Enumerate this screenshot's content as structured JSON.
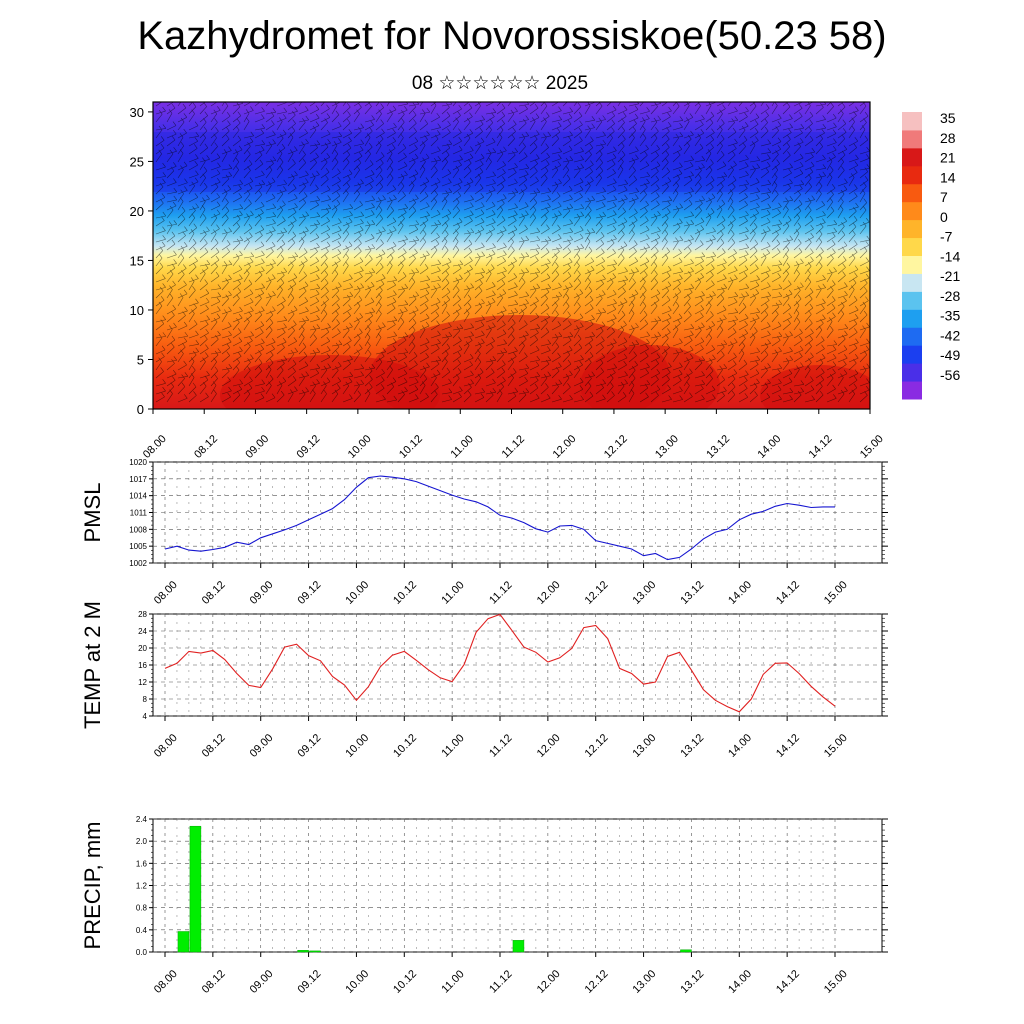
{
  "title": "Kazhydromet for Novorossiskoe(50.23 58)",
  "subtitle": "08 ☆☆☆☆☆☆ 2025",
  "colors": {
    "pmsl_line": "#1515d0",
    "temp_line": "#e02020",
    "precip_bar": "#00ee00",
    "frame": "#000000"
  },
  "chart_data": [
    {
      "type": "heatmap",
      "name_in_figure": "cross-section",
      "x_ticks": [
        "08.00",
        "08.12",
        "09.00",
        "09.12",
        "10.00",
        "10.12",
        "11.00",
        "11.12",
        "12.00",
        "12.12",
        "13.00",
        "13.12",
        "14.00",
        "14.12",
        "15.00"
      ],
      "y_ticks": [
        "0",
        "5",
        "10",
        "15",
        "20",
        "25",
        "30"
      ],
      "ylim": [
        0,
        31
      ],
      "colorbar_labels": [
        "35",
        "28",
        "21",
        "14",
        "7",
        "0",
        "-7",
        "-14",
        "-21",
        "-28",
        "-35",
        "-42",
        "-49",
        "-56"
      ],
      "colorbar_range": [
        -60,
        38
      ],
      "colorscale": [
        "#8a2be2",
        "#4a2fe8",
        "#1b3ff0",
        "#1e6bf2",
        "#1e9ff0",
        "#5bc3ef",
        "#c8e6f2",
        "#fff6a0",
        "#ffd84a",
        "#ffb42a",
        "#ff8a1a",
        "#f85a10",
        "#e82a10",
        "#d81818",
        "#f07a7a",
        "#f6c0c0"
      ],
      "overlay": "wind barbs"
    },
    {
      "type": "line",
      "ylabel": "PMSL",
      "x_ticks": [
        "08.00",
        "08.12",
        "09.00",
        "09.12",
        "10.00",
        "10.12",
        "11.00",
        "11.12",
        "12.00",
        "12.12",
        "13.00",
        "13.12",
        "14.00",
        "14.12",
        "15.00"
      ],
      "y_ticks": [
        "1002",
        "1005",
        "1008",
        "1011",
        "1014",
        "1017",
        "1020"
      ],
      "ylim": [
        1002,
        1020
      ],
      "grid": true,
      "series": [
        {
          "values": [
            1004.5,
            1005,
            1004.3,
            1004.1,
            1004.4,
            1004.8,
            1005.7,
            1005.3,
            1006.5,
            1007.2,
            1007.9,
            1008.7,
            1009.7,
            1010.7,
            1011.7,
            1013.3,
            1015.5,
            1017.2,
            1017.5,
            1017.3,
            1017.0,
            1016.5,
            1015.7,
            1014.9,
            1014.1,
            1013.4,
            1012.9,
            1012.0,
            1010.5,
            1010.0,
            1009.2,
            1008.1,
            1007.5,
            1008.6,
            1008.7,
            1008.0,
            1006.0,
            1005.5,
            1005.0,
            1004.5,
            1003.3,
            1003.7,
            1002.6,
            1003.0,
            1004.5,
            1006.3,
            1007.5,
            1008.0,
            1009.7,
            1010.7,
            1011.2,
            1012.1,
            1012.6,
            1012.3,
            1011.9,
            1012.0,
            1012.0
          ]
        }
      ]
    },
    {
      "type": "line",
      "ylabel": "TEMP at 2 M",
      "x_ticks": [
        "08.00",
        "08.12",
        "09.00",
        "09.12",
        "10.00",
        "10.12",
        "11.00",
        "11.12",
        "12.00",
        "12.12",
        "13.00",
        "13.12",
        "14.00",
        "14.12",
        "15.00"
      ],
      "y_ticks": [
        "4",
        "8",
        "12",
        "16",
        "20",
        "24",
        "28"
      ],
      "ylim": [
        4,
        28
      ],
      "grid": true,
      "series": [
        {
          "values": [
            15.2,
            16.4,
            19.2,
            18.8,
            19.4,
            17.3,
            14.0,
            11.2,
            10.7,
            15.1,
            20.2,
            20.9,
            18.2,
            17.0,
            13.3,
            11.3,
            7.7,
            10.9,
            15.6,
            18.3,
            19.2,
            17.1,
            14.9,
            13.0,
            12.1,
            16.1,
            23.7,
            26.9,
            27.9,
            24.1,
            20.2,
            19.0,
            16.7,
            17.7,
            19.9,
            24.8,
            25.3,
            22.2,
            15.2,
            14.0,
            11.5,
            12.0,
            18.0,
            19.0,
            14.8,
            10.2,
            7.7,
            6.2,
            5.0,
            8.0,
            13.8,
            16.4,
            16.5,
            14.0,
            11.0,
            8.5,
            6.3
          ]
        }
      ]
    },
    {
      "type": "bar",
      "ylabel": "PRECIP, mm",
      "x_ticks": [
        "08.00",
        "08.12",
        "09.00",
        "09.12",
        "10.00",
        "10.12",
        "11.00",
        "11.12",
        "12.00",
        "12.12",
        "13.00",
        "13.12",
        "14.00",
        "14.12",
        "15.00"
      ],
      "y_ticks": [
        "0.0",
        "0.4",
        "0.8",
        "1.2",
        "1.6",
        "2.0",
        "2.4"
      ],
      "ylim": [
        0,
        2.4
      ],
      "grid": true,
      "bars": [
        {
          "time_index": 1,
          "value": 0.37
        },
        {
          "time_index": 2,
          "value": 2.27
        },
        {
          "time_index": 11,
          "value": 0.03
        },
        {
          "time_index": 12,
          "value": 0.02
        },
        {
          "time_index": 29,
          "value": 0.21
        },
        {
          "time_index": 43,
          "value": 0.04
        }
      ]
    }
  ]
}
